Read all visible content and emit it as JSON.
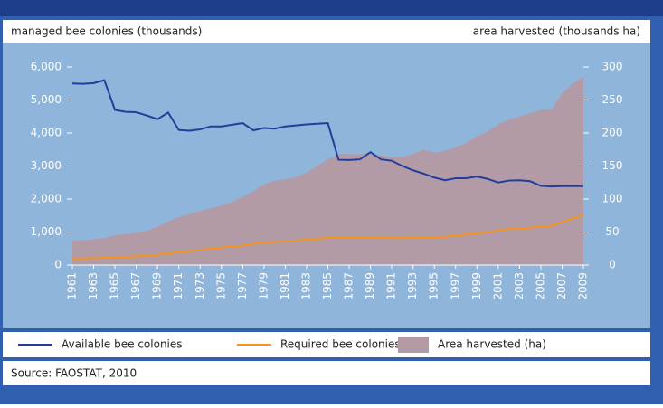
{
  "chart_data": {
    "type": "line",
    "left_axis_label": "managed bee colonies (thousands)",
    "right_axis_label": "area harvested (thousands ha)",
    "source": "Source: FAOSTAT, 2010",
    "x": [
      1961,
      1962,
      1963,
      1964,
      1965,
      1966,
      1967,
      1968,
      1969,
      1970,
      1971,
      1972,
      1973,
      1974,
      1975,
      1976,
      1977,
      1978,
      1979,
      1980,
      1981,
      1982,
      1983,
      1984,
      1985,
      1986,
      1987,
      1988,
      1989,
      1990,
      1991,
      1992,
      1993,
      1994,
      1995,
      1996,
      1997,
      1998,
      1999,
      2000,
      2001,
      2002,
      2003,
      2004,
      2005,
      2006,
      2007,
      2008,
      2009
    ],
    "xlim": [
      1961,
      2009
    ],
    "xticks": [
      1961,
      1963,
      1965,
      1967,
      1969,
      1971,
      1973,
      1975,
      1977,
      1979,
      1981,
      1983,
      1985,
      1987,
      1989,
      1991,
      1993,
      1995,
      1997,
      1999,
      2001,
      2003,
      2005,
      2007,
      2009
    ],
    "ylim": [
      0,
      6000
    ],
    "yticks": [
      0,
      {
        "value": 1000,
        "label": "1,000"
      },
      {
        "value": 2000,
        "label": "2,000"
      },
      {
        "value": 3000,
        "label": "3,000"
      },
      {
        "value": 4000,
        "label": "4,000"
      },
      {
        "value": 5000,
        "label": "5,000"
      },
      {
        "value": 6000,
        "label": "6,000"
      }
    ],
    "y2lim": [
      0,
      300
    ],
    "y2ticks": [
      0,
      50,
      100,
      150,
      200,
      250,
      300
    ],
    "series": [
      {
        "name": "Area harvested (ha)",
        "type": "area",
        "axis": "y2",
        "color": "#b39aa7",
        "values": [
          37,
          38,
          39,
          41,
          45,
          47,
          49,
          52,
          58,
          66,
          73,
          77,
          82,
          86,
          90,
          96,
          103,
          112,
          122,
          128,
          130,
          133,
          140,
          150,
          160,
          168,
          168,
          168,
          168,
          166,
          163,
          164,
          168,
          175,
          170,
          173,
          178,
          185,
          195,
          202,
          213,
          220,
          225,
          230,
          235,
          236,
          260,
          275,
          285
        ]
      },
      {
        "name": "Available bee colonies",
        "type": "line",
        "color": "#1f3f9a",
        "values": [
          5500,
          5490,
          5510,
          5600,
          4700,
          4640,
          4630,
          4530,
          4420,
          4620,
          4090,
          4070,
          4110,
          4200,
          4200,
          4250,
          4300,
          4080,
          4150,
          4130,
          4200,
          4230,
          4260,
          4280,
          4300,
          3190,
          3180,
          3200,
          3420,
          3200,
          3160,
          3000,
          2870,
          2770,
          2650,
          2570,
          2630,
          2630,
          2680,
          2610,
          2500,
          2560,
          2570,
          2540,
          2400,
          2380,
          2390,
          2390,
          2390
        ]
      },
      {
        "name": "Required bee colonies",
        "type": "line",
        "color": "#f7941d",
        "values": [
          200,
          200,
          210,
          220,
          240,
          250,
          260,
          280,
          310,
          350,
          390,
          420,
          460,
          500,
          530,
          560,
          590,
          640,
          690,
          700,
          710,
          740,
          770,
          800,
          820,
          830,
          830,
          840,
          850,
          830,
          820,
          820,
          820,
          840,
          830,
          860,
          890,
          920,
          960,
          1000,
          1040,
          1090,
          1110,
          1130,
          1170,
          1190,
          1300,
          1420,
          1500
        ]
      }
    ]
  }
}
